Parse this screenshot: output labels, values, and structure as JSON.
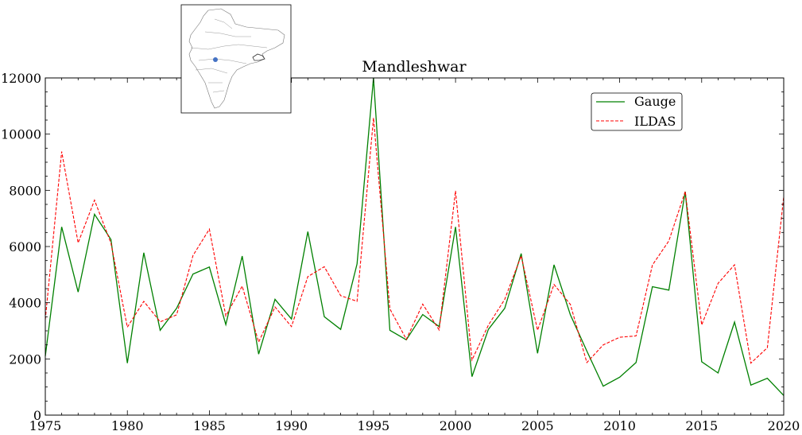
{
  "chart_data": {
    "type": "line",
    "title": "Mandleshwar",
    "xlabel": "",
    "ylabel": "",
    "xlim": [
      1975,
      2020
    ],
    "ylim": [
      0,
      12000
    ],
    "x_ticks": [
      1975,
      1980,
      1985,
      1990,
      1995,
      2000,
      2005,
      2010,
      2015,
      2020
    ],
    "y_ticks": [
      0,
      2000,
      4000,
      6000,
      8000,
      10000,
      12000
    ],
    "grid": false,
    "legend_position": "top-right",
    "x": [
      1975,
      1976,
      1977,
      1978,
      1979,
      1980,
      1981,
      1982,
      1983,
      1984,
      1985,
      1986,
      1987,
      1988,
      1989,
      1990,
      1991,
      1992,
      1993,
      1994,
      1995,
      1996,
      1997,
      1998,
      1999,
      2000,
      2001,
      2002,
      2003,
      2004,
      2005,
      2006,
      2007,
      2008,
      2009,
      2010,
      2011,
      2012,
      2013,
      2014,
      2015,
      2016,
      2017,
      2018,
      2019,
      2020
    ],
    "series": [
      {
        "name": "Gauge",
        "color": "#008000",
        "style": "solid",
        "values": [
          2100,
          6700,
          4380,
          7150,
          6250,
          1850,
          5780,
          3020,
          3800,
          5020,
          5270,
          3220,
          5660,
          2170,
          4120,
          3420,
          6530,
          3500,
          3050,
          5380,
          12000,
          3020,
          2680,
          3580,
          3150,
          6700,
          1370,
          3050,
          3800,
          5750,
          2200,
          5350,
          3570,
          2280,
          1030,
          1350,
          1870,
          4570,
          4450,
          7950,
          1900,
          1500,
          3310,
          1070,
          1310,
          700
        ]
      },
      {
        "name": "ILDAS",
        "color": "#ff0000",
        "style": "dashed",
        "values": [
          3400,
          9380,
          6130,
          7650,
          6120,
          3130,
          4050,
          3320,
          3570,
          5680,
          6620,
          3530,
          4590,
          2600,
          3850,
          3150,
          4930,
          5280,
          4250,
          4050,
          10580,
          3780,
          2700,
          3950,
          3030,
          7980,
          1960,
          3200,
          4120,
          5670,
          3020,
          4650,
          3940,
          1870,
          2500,
          2770,
          2820,
          5340,
          6200,
          7960,
          3210,
          4690,
          5350,
          1850,
          2400,
          7780
        ]
      }
    ]
  },
  "inset_map": {
    "icon": "india-region-map-icon",
    "marker_color": "#4472c4"
  }
}
